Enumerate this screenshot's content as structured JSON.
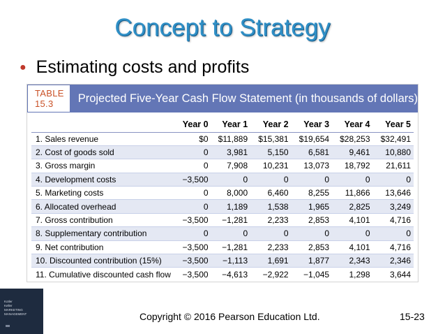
{
  "slide": {
    "title": "Concept to Strategy",
    "bullet": "Estimating costs and profits",
    "copyright": "Copyright © 2016 Pearson Education Ltd.",
    "slide_number": "15-23"
  },
  "table": {
    "label": "TABLE 15.3",
    "heading": "Projected Five-Year Cash Flow Statement (in thousands of dollars)",
    "columns": [
      "",
      "Year 0",
      "Year 1",
      "Year 2",
      "Year 3",
      "Year 4",
      "Year 5"
    ],
    "rows": [
      [
        "1. Sales revenue",
        "$0",
        "$11,889",
        "$15,381",
        "$19,654",
        "$28,253",
        "$32,491"
      ],
      [
        "2. Cost of goods sold",
        "0",
        "3,981",
        "5,150",
        "6,581",
        "9,461",
        "10,880"
      ],
      [
        "3. Gross margin",
        "0",
        "7,908",
        "10,231",
        "13,073",
        "18,792",
        "21,611"
      ],
      [
        "4. Development costs",
        "−3,500",
        "0",
        "0",
        "0",
        "0",
        "0"
      ],
      [
        "5. Marketing costs",
        "0",
        "8,000",
        "6,460",
        "8,255",
        "11,866",
        "13,646"
      ],
      [
        "6. Allocated overhead",
        "0",
        "1,189",
        "1,538",
        "1,965",
        "2,825",
        "3,249"
      ],
      [
        "7. Gross contribution",
        "−3,500",
        "−1,281",
        "2,233",
        "2,853",
        "4,101",
        "4,716"
      ],
      [
        "8. Supplementary contribution",
        "0",
        "0",
        "0",
        "0",
        "0",
        "0"
      ],
      [
        "9. Net contribution",
        "−3,500",
        "−1,281",
        "2,233",
        "2,853",
        "4,101",
        "4,716"
      ],
      [
        "10. Discounted contribution (15%)",
        "−3,500",
        "−1,113",
        "1,691",
        "1,877",
        "2,343",
        "2,346"
      ],
      [
        "11. Cumulative discounted cash flow",
        "−3,500",
        "−4,613",
        "−2,922",
        "−1,045",
        "1,298",
        "3,644"
      ]
    ]
  },
  "book_thumbnail": {
    "lines": [
      "Kotler",
      "Keller",
      "MARKETING",
      "MANAGEMENT"
    ]
  },
  "colors": {
    "title": "#2f8fc6",
    "bullet": "#c0392b",
    "table_header": "#6376b6",
    "table_label": "#c95127",
    "row_shade": "#e4e8f3"
  }
}
